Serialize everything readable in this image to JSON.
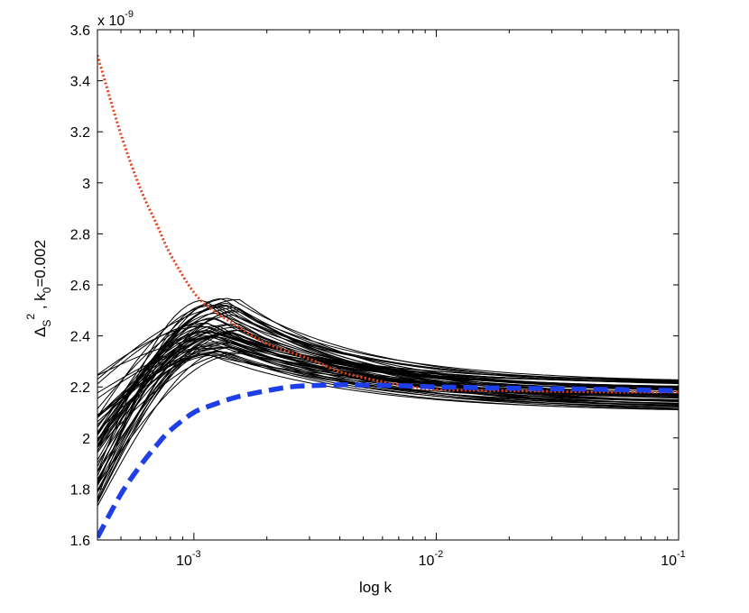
{
  "chart_data": {
    "type": "line",
    "xlabel": "log k",
    "ylabel": "Δ_S^2 , k_0=0.002",
    "ylabel_parts": {
      "delta": "Δ",
      "sub_s": "S",
      "sup_2": "2",
      "mid": " , k",
      "sub_0": "0",
      "tail": "=0.002"
    },
    "x_scale": "log",
    "xlim": [
      0.0004,
      0.1
    ],
    "ylim": [
      1.6e-09,
      3.6e-09
    ],
    "y_exponent_label": {
      "base": "x 10",
      "exp": "-9"
    },
    "x_ticks": [
      {
        "value": 0.001,
        "base": "10",
        "exp": "-3"
      },
      {
        "value": 0.01,
        "base": "10",
        "exp": "-2"
      },
      {
        "value": 0.1,
        "base": "10",
        "exp": "-1"
      }
    ],
    "y_ticks": [
      {
        "value": 1.6,
        "label": "1.6"
      },
      {
        "value": 1.8,
        "label": "1.8"
      },
      {
        "value": 2.0,
        "label": "2"
      },
      {
        "value": 2.2,
        "label": "2.2"
      },
      {
        "value": 2.4,
        "label": "2.4"
      },
      {
        "value": 2.6,
        "label": "2.6"
      },
      {
        "value": 2.8,
        "label": "2.8"
      },
      {
        "value": 3.0,
        "label": "3"
      },
      {
        "value": 3.2,
        "label": "3.2"
      },
      {
        "value": 3.4,
        "label": "3.4"
      },
      {
        "value": 3.6,
        "label": "3.6"
      }
    ],
    "grid": false,
    "legend": "none",
    "series": [
      {
        "style": "dotted",
        "color": "#e8401c",
        "x": [
          0.0004,
          0.0005,
          0.0006,
          0.0007,
          0.0008,
          0.001,
          0.0012,
          0.0015,
          0.002,
          0.003,
          0.004,
          0.006,
          0.008,
          0.01,
          0.02,
          0.05,
          0.1
        ],
        "y": [
          3.5,
          3.19,
          2.98,
          2.84,
          2.72,
          2.57,
          2.5,
          2.44,
          2.37,
          2.31,
          2.26,
          2.22,
          2.2,
          2.19,
          2.185,
          2.18,
          2.18
        ]
      },
      {
        "style": "dashed",
        "color": "#1f3fe6",
        "x": [
          0.0004,
          0.0005,
          0.0006,
          0.0007,
          0.0008,
          0.001,
          0.0012,
          0.0015,
          0.002,
          0.0025,
          0.003,
          0.004,
          0.005,
          0.007,
          0.01,
          0.02,
          0.05,
          0.1
        ],
        "y": [
          1.61,
          1.78,
          1.89,
          1.97,
          2.03,
          2.1,
          2.13,
          2.16,
          2.185,
          2.2,
          2.205,
          2.208,
          2.207,
          2.205,
          2.2,
          2.195,
          2.19,
          2.185
        ]
      }
    ],
    "ensemble": {
      "style": "solid",
      "color": "#000000",
      "count": 60,
      "start_range": [
        1.72,
        2.27
      ],
      "peak_range": [
        2.32,
        2.55
      ],
      "peak_k_range": [
        0.0011,
        0.0016
      ],
      "end_range": [
        2.1,
        2.22
      ]
    }
  }
}
